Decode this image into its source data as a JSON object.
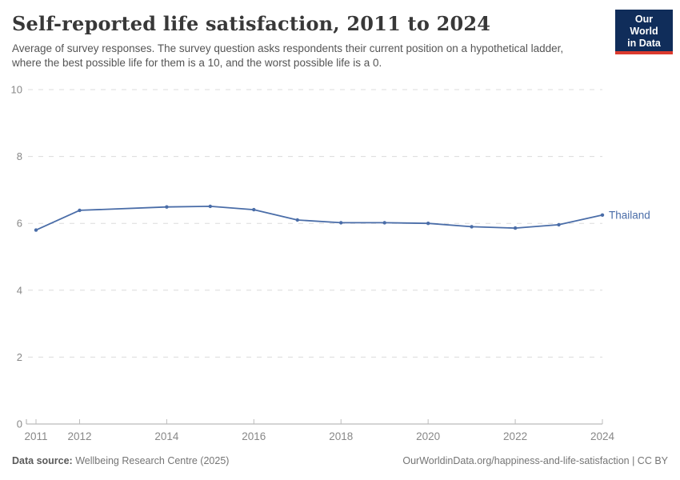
{
  "header": {
    "logo": {
      "line1": "Our World",
      "line2": "in Data",
      "bg_color": "#102d5a",
      "accent_color": "#dc3a2e"
    }
  },
  "chart_data": {
    "type": "line",
    "title": "Self-reported life satisfaction, 2011 to 2024",
    "subtitle": "Average of survey responses. The survey question asks respondents their current position on a hypothetical ladder, where the best possible life for them is a 10, and the worst possible life is a 0.",
    "x": [
      2011,
      2012,
      2013,
      2014,
      2015,
      2016,
      2017,
      2018,
      2019,
      2020,
      2021,
      2022,
      2023,
      2024
    ],
    "series": [
      {
        "name": "Thailand",
        "color": "#4a6da8",
        "values": [
          5.8,
          6.39,
          null,
          6.49,
          6.51,
          6.41,
          6.1,
          6.02,
          6.02,
          6.0,
          5.9,
          5.86,
          5.96,
          6.25
        ]
      }
    ],
    "x_ticks": [
      2011,
      2012,
      2014,
      2016,
      2018,
      2020,
      2022,
      2024
    ],
    "y_ticks": [
      0,
      2,
      4,
      6,
      8,
      10
    ],
    "xlim": [
      2011,
      2024
    ],
    "ylim": [
      0,
      10
    ],
    "xlabel": "",
    "ylabel": "",
    "grid": "horizontal-dashed",
    "legend": "series-label-at-line-end",
    "gridline_color": "#dcdcdc",
    "axis_color": "#a8a8a8",
    "tick_label_color": "#888888"
  },
  "footer": {
    "source_label": "Data source:",
    "source_value": " Wellbeing Research Centre (2025)",
    "link": "OurWorldinData.org/happiness-and-life-satisfaction | CC BY"
  }
}
